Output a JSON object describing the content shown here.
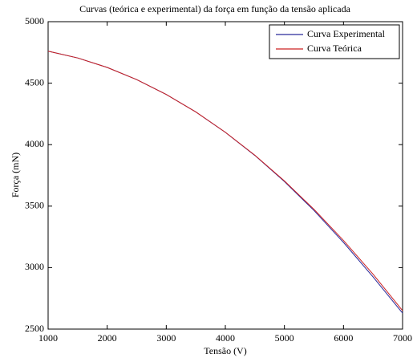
{
  "chart_data": {
    "type": "line",
    "title": "Curvas (teórica e experimental) da força em função da tensão aplicada",
    "x_label": "Tensão (V)",
    "y_label": "Força (mN)",
    "x": [
      1000,
      1500,
      2000,
      2500,
      3000,
      3500,
      4000,
      4500,
      5000,
      5500,
      6000,
      6500,
      7000
    ],
    "series": [
      {
        "name": "Curva Experimental",
        "color": "#2a2a9a",
        "values": [
          4760,
          4705,
          4628,
          4529,
          4408,
          4266,
          4100,
          3912,
          3700,
          3465,
          3205,
          2925,
          2630
        ]
      },
      {
        "name": "Curva Teórica",
        "color": "#cc2222",
        "values": [
          4760,
          4705,
          4628,
          4529,
          4408,
          4266,
          4101,
          3914,
          3705,
          3474,
          3221,
          2947,
          2650
        ]
      }
    ],
    "xlim": [
      1000,
      7000
    ],
    "xticks": [
      1000,
      2000,
      3000,
      4000,
      5000,
      6000,
      7000
    ],
    "ylim": [
      2500,
      5000
    ],
    "yticks": [
      2500,
      3000,
      3500,
      4000,
      4500,
      5000
    ],
    "legend": "upper right",
    "grid": false
  }
}
